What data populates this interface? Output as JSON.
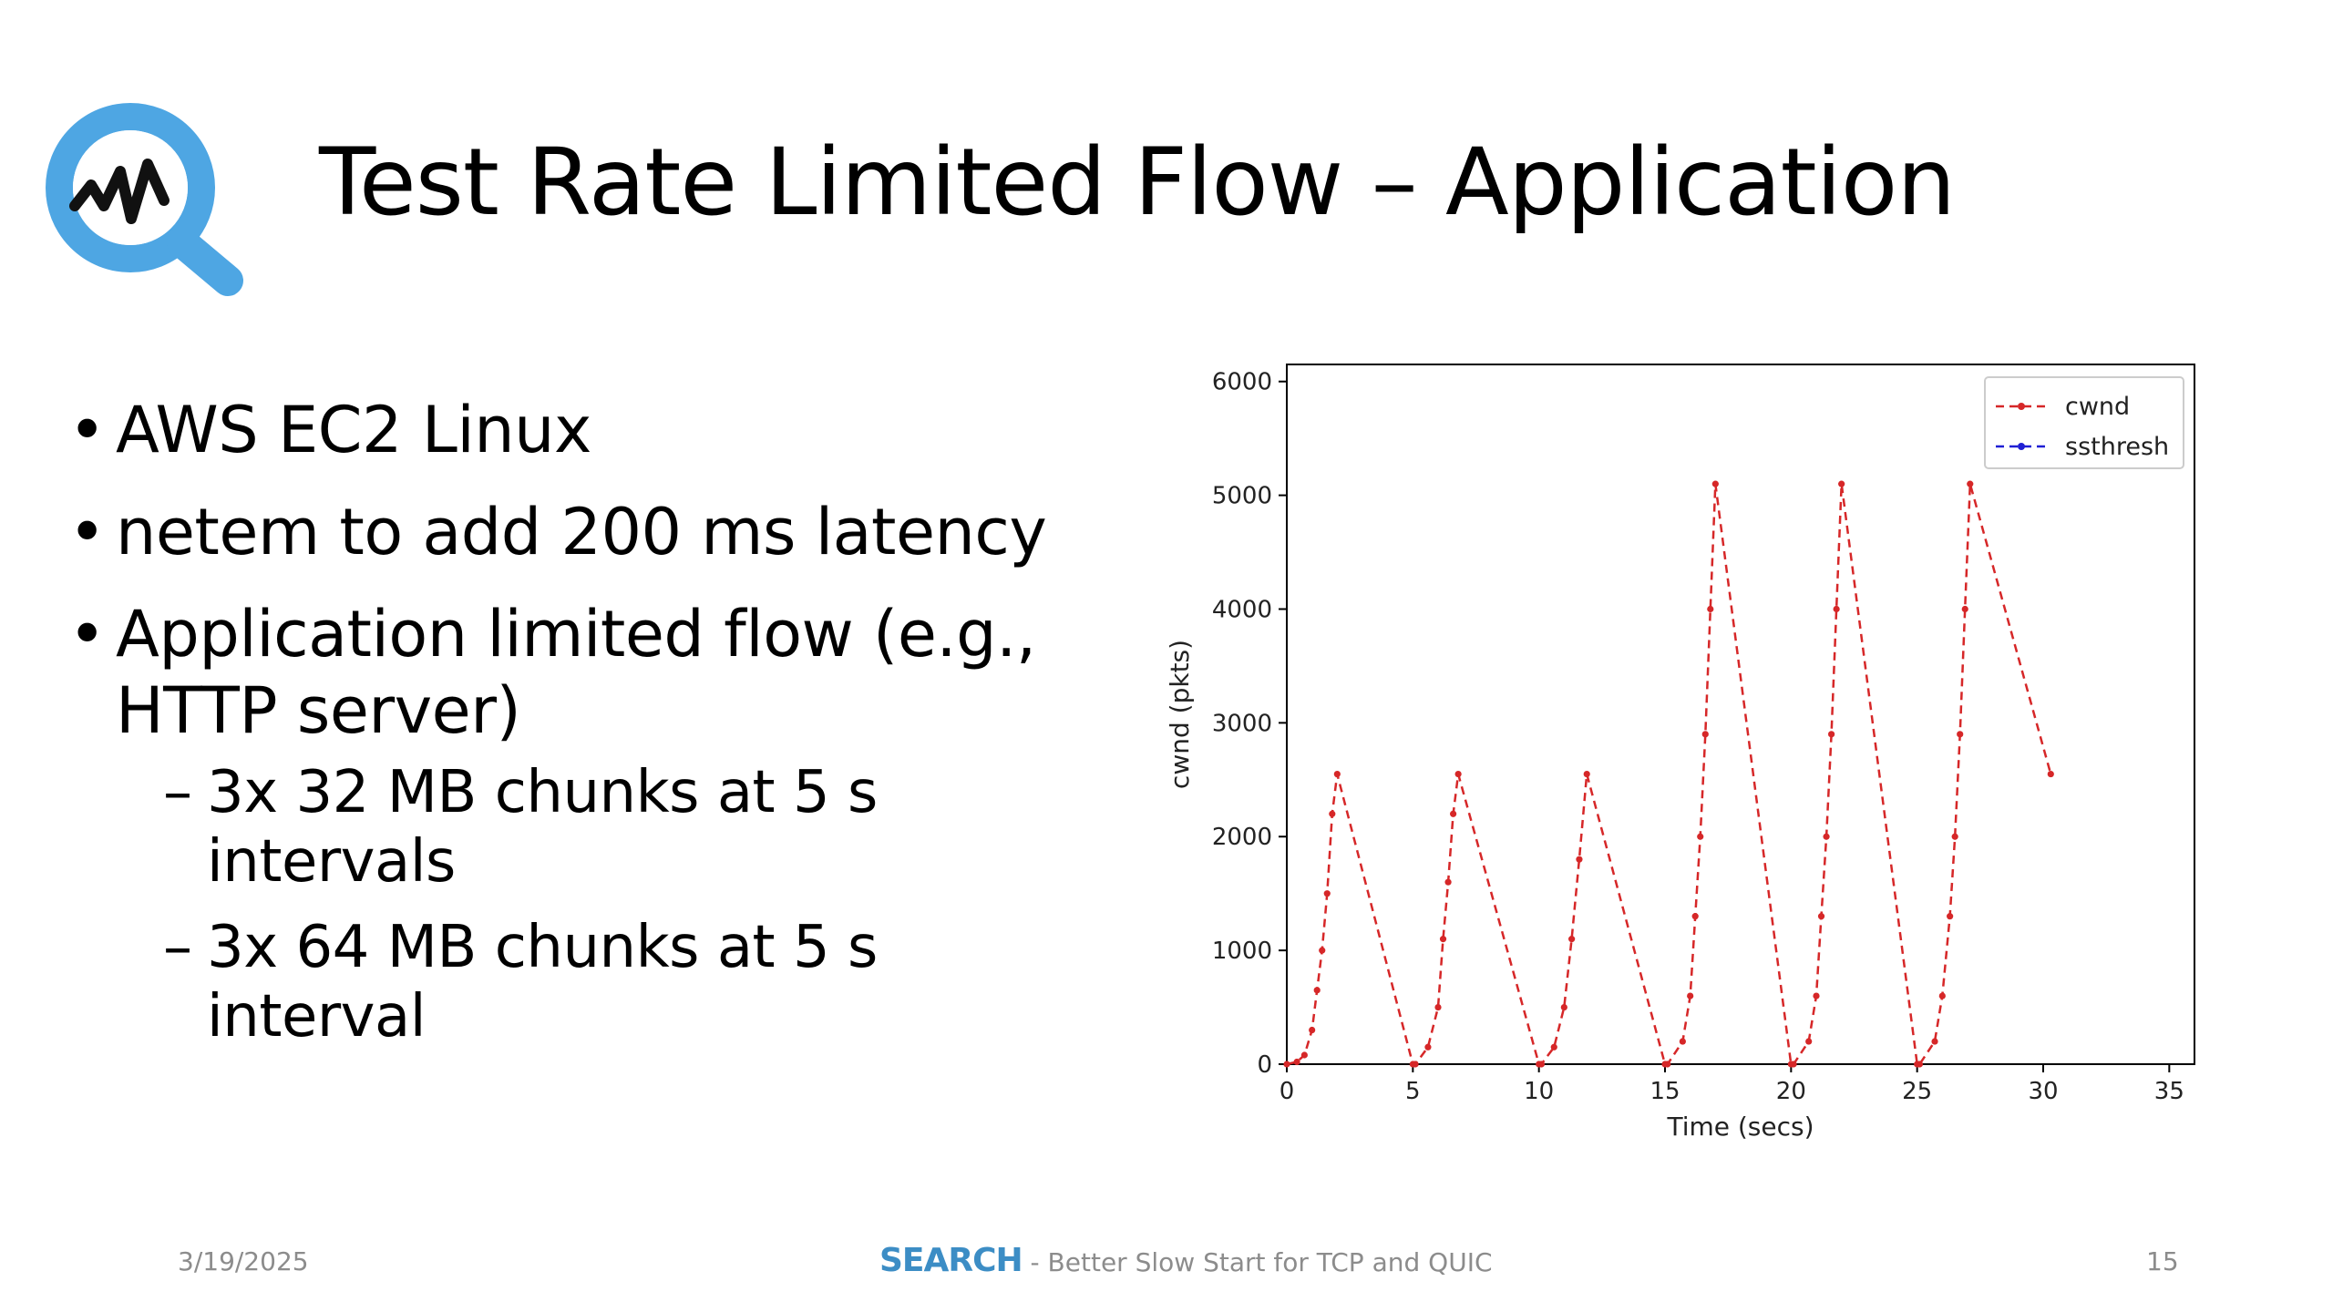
{
  "slide": {
    "title": "Test Rate Limited Flow – Application",
    "logo_icon": "magnifier-pulse-icon",
    "accent_color": "#4ea6e3"
  },
  "bullets": [
    {
      "text": "AWS EC2 Linux"
    },
    {
      "text": "netem to add 200 ms latency"
    },
    {
      "text_line1": "Application limited flow (e.g.,",
      "text_line2": "HTTP server)"
    }
  ],
  "subbullets": [
    {
      "dash": "–",
      "line1": "3x 32 MB chunks at 5 s",
      "line2": "intervals"
    },
    {
      "dash": "–",
      "line1": "3x 64 MB chunks at 5 s",
      "line2": "interval"
    }
  ],
  "chart_data": {
    "type": "line",
    "xlabel": "Time (secs)",
    "ylabel": "cwnd (pkts)",
    "xlim": [
      0,
      36
    ],
    "ylim": [
      0,
      6150
    ],
    "xticks": [
      0,
      5,
      10,
      15,
      20,
      25,
      30,
      35
    ],
    "yticks": [
      0,
      1000,
      2000,
      3000,
      4000,
      5000,
      6000
    ],
    "grid": false,
    "legend_position": "top-right",
    "series": [
      {
        "name": "cwnd",
        "color": "#d62728",
        "style": "dashed-with-point-markers",
        "points": [
          [
            0,
            0
          ],
          [
            0.4,
            20
          ],
          [
            0.7,
            80
          ],
          [
            1.0,
            300
          ],
          [
            1.2,
            650
          ],
          [
            1.4,
            1000
          ],
          [
            1.6,
            1500
          ],
          [
            1.8,
            2200
          ],
          [
            2.0,
            2550
          ],
          [
            5.0,
            0
          ],
          [
            5.1,
            0
          ],
          [
            5.6,
            150
          ],
          [
            6.0,
            500
          ],
          [
            6.2,
            1100
          ],
          [
            6.4,
            1600
          ],
          [
            6.6,
            2200
          ],
          [
            6.8,
            2550
          ],
          [
            10.0,
            0
          ],
          [
            10.1,
            0
          ],
          [
            10.6,
            150
          ],
          [
            11.0,
            500
          ],
          [
            11.3,
            1100
          ],
          [
            11.6,
            1800
          ],
          [
            11.9,
            2550
          ],
          [
            15.0,
            0
          ],
          [
            15.1,
            0
          ],
          [
            15.7,
            200
          ],
          [
            16.0,
            600
          ],
          [
            16.2,
            1300
          ],
          [
            16.4,
            2000
          ],
          [
            16.6,
            2900
          ],
          [
            16.8,
            4000
          ],
          [
            17.0,
            5100
          ],
          [
            20.0,
            0
          ],
          [
            20.1,
            0
          ],
          [
            20.7,
            200
          ],
          [
            21.0,
            600
          ],
          [
            21.2,
            1300
          ],
          [
            21.4,
            2000
          ],
          [
            21.6,
            2900
          ],
          [
            21.8,
            4000
          ],
          [
            22.0,
            5100
          ],
          [
            25.0,
            0
          ],
          [
            25.1,
            0
          ],
          [
            25.7,
            200
          ],
          [
            26.0,
            600
          ],
          [
            26.3,
            1300
          ],
          [
            26.5,
            2000
          ],
          [
            26.7,
            2900
          ],
          [
            26.9,
            4000
          ],
          [
            27.1,
            5100
          ],
          [
            30.3,
            2550
          ]
        ]
      },
      {
        "name": "ssthresh",
        "color": "#1f1fd4",
        "style": "dashed-with-point-markers",
        "points": []
      }
    ]
  },
  "footer": {
    "date": "3/19/2025",
    "brand": "SEARCH",
    "subtitle": " - Better Slow Start for TCP and QUIC",
    "page": "15"
  }
}
